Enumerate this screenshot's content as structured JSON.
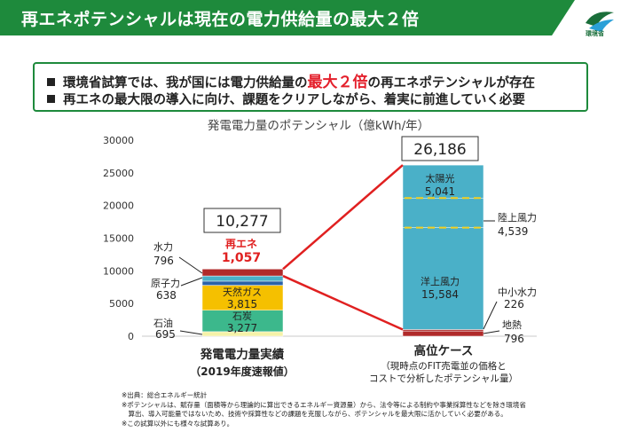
{
  "header": {
    "title": "再エネポテンシャルは現在の電力供給量の最大２倍",
    "logo_text": "環境省"
  },
  "bullets": {
    "line1_pre": "環境省試算では、我が国には電力供給量の",
    "line1_highlight": "最大２倍",
    "line1_post": "の再エネポテンシャルが存在",
    "line2": "再エネの最大限の導入に向け、課題をクリアしながら、着実に前進していく必要"
  },
  "chart_data": {
    "type": "bar",
    "stacked": true,
    "title": "発電電力量のポテンシャル（億kWh/年）",
    "ylim": [
      0,
      30000
    ],
    "yticks": [
      "0",
      "5000",
      "10000",
      "15000",
      "20000",
      "25000",
      "30000"
    ],
    "bars": [
      {
        "label": "発電電力量実績",
        "sublabel": [
          "（2019年度速報値）"
        ],
        "total_label": "10,277",
        "segments": [
          {
            "name": "石油",
            "value": 695,
            "value_label": "695",
            "color": "#f5f2a8"
          },
          {
            "name": "石炭",
            "value": 3277,
            "value_label": "3,277",
            "color": "#3cb88c"
          },
          {
            "name": "天然ガス",
            "value": 3815,
            "value_label": "3,815",
            "color": "#f5c000"
          },
          {
            "name": "原子力",
            "value": 638,
            "value_label": "638",
            "color": "#2a62a8"
          },
          {
            "name": "水力",
            "value": 796,
            "value_label": "796",
            "color": "#4ab0c8"
          },
          {
            "name": "再エネ",
            "value": 1057,
            "value_label": "1,057",
            "color": "#b02a2a"
          }
        ]
      },
      {
        "label": "高位ケース",
        "sublabel": [
          "（現時点のFIT売電並の価格と",
          "コストで分析したポテンシャル量）"
        ],
        "total_label": "26,186",
        "segments": [
          {
            "name": "地熱",
            "value": 796,
            "value_label": "796",
            "color": "#b02a2a"
          },
          {
            "name": "中小水力",
            "value": 226,
            "value_label": "226",
            "color": "#b02a2a"
          },
          {
            "name": "洋上風力",
            "value": 15584,
            "value_label": "15,584",
            "color": "#4ab0c8"
          },
          {
            "name": "陸上風力",
            "value": 4539,
            "value_label": "4,539",
            "color": "#4ab0c8"
          },
          {
            "name": "太陽光",
            "value": 5041,
            "value_label": "5,041",
            "color": "#4ab0c8"
          }
        ]
      }
    ]
  },
  "notes": [
    "※出典：総合エネルギー統計",
    "※ポテンシャルは、賦存量（面積等から理論的に算出できるエネルギー資源量）から、法令等による制約や事業採算性などを除き環境省",
    "　算出、導入可能量ではないため、技術や採算性などの課題を克服しながら、ポテンシャルを最大限に活かしていく必要がある。",
    "※この試算以外にも様々な試算あり。"
  ]
}
